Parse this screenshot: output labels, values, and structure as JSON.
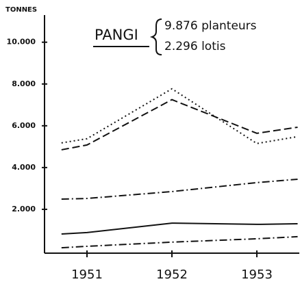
{
  "chart_data": {
    "type": "line",
    "y_label": "TONNES",
    "annotations": [
      "PANGI",
      "9.876 planteurs",
      "2.296 lotis"
    ],
    "x": [
      1950.7,
      1951,
      1952,
      1953,
      1953.48
    ],
    "xlim": [
      1950.5,
      1953.5
    ],
    "xticks": [
      1951,
      1952,
      1953
    ],
    "ylim": [
      0,
      11300
    ],
    "yticks": [
      {
        "value": 2000,
        "label": "2.000"
      },
      {
        "value": 4000,
        "label": "4.000"
      },
      {
        "value": 6000,
        "label": "6.000"
      },
      {
        "value": 8000,
        "label": "8.000"
      },
      {
        "value": 10000,
        "label": "10.000"
      }
    ],
    "series": [
      {
        "color": "#111111",
        "style": "dotted",
        "values": [
          5180,
          5380,
          7770,
          5150,
          5480
        ]
      },
      {
        "color": "#111111",
        "style": "dashed",
        "values": [
          4850,
          5080,
          7250,
          5640,
          5930
        ]
      },
      {
        "color": "#111111",
        "style": "dashdot",
        "values": [
          2490,
          2520,
          2850,
          3280,
          3440
        ]
      },
      {
        "color": "#111111",
        "style": "solid",
        "values": [
          820,
          890,
          1340,
          1280,
          1310
        ]
      },
      {
        "color": "#111111",
        "style": "dashdot",
        "values": [
          160,
          230,
          430,
          590,
          690
        ]
      }
    ]
  }
}
